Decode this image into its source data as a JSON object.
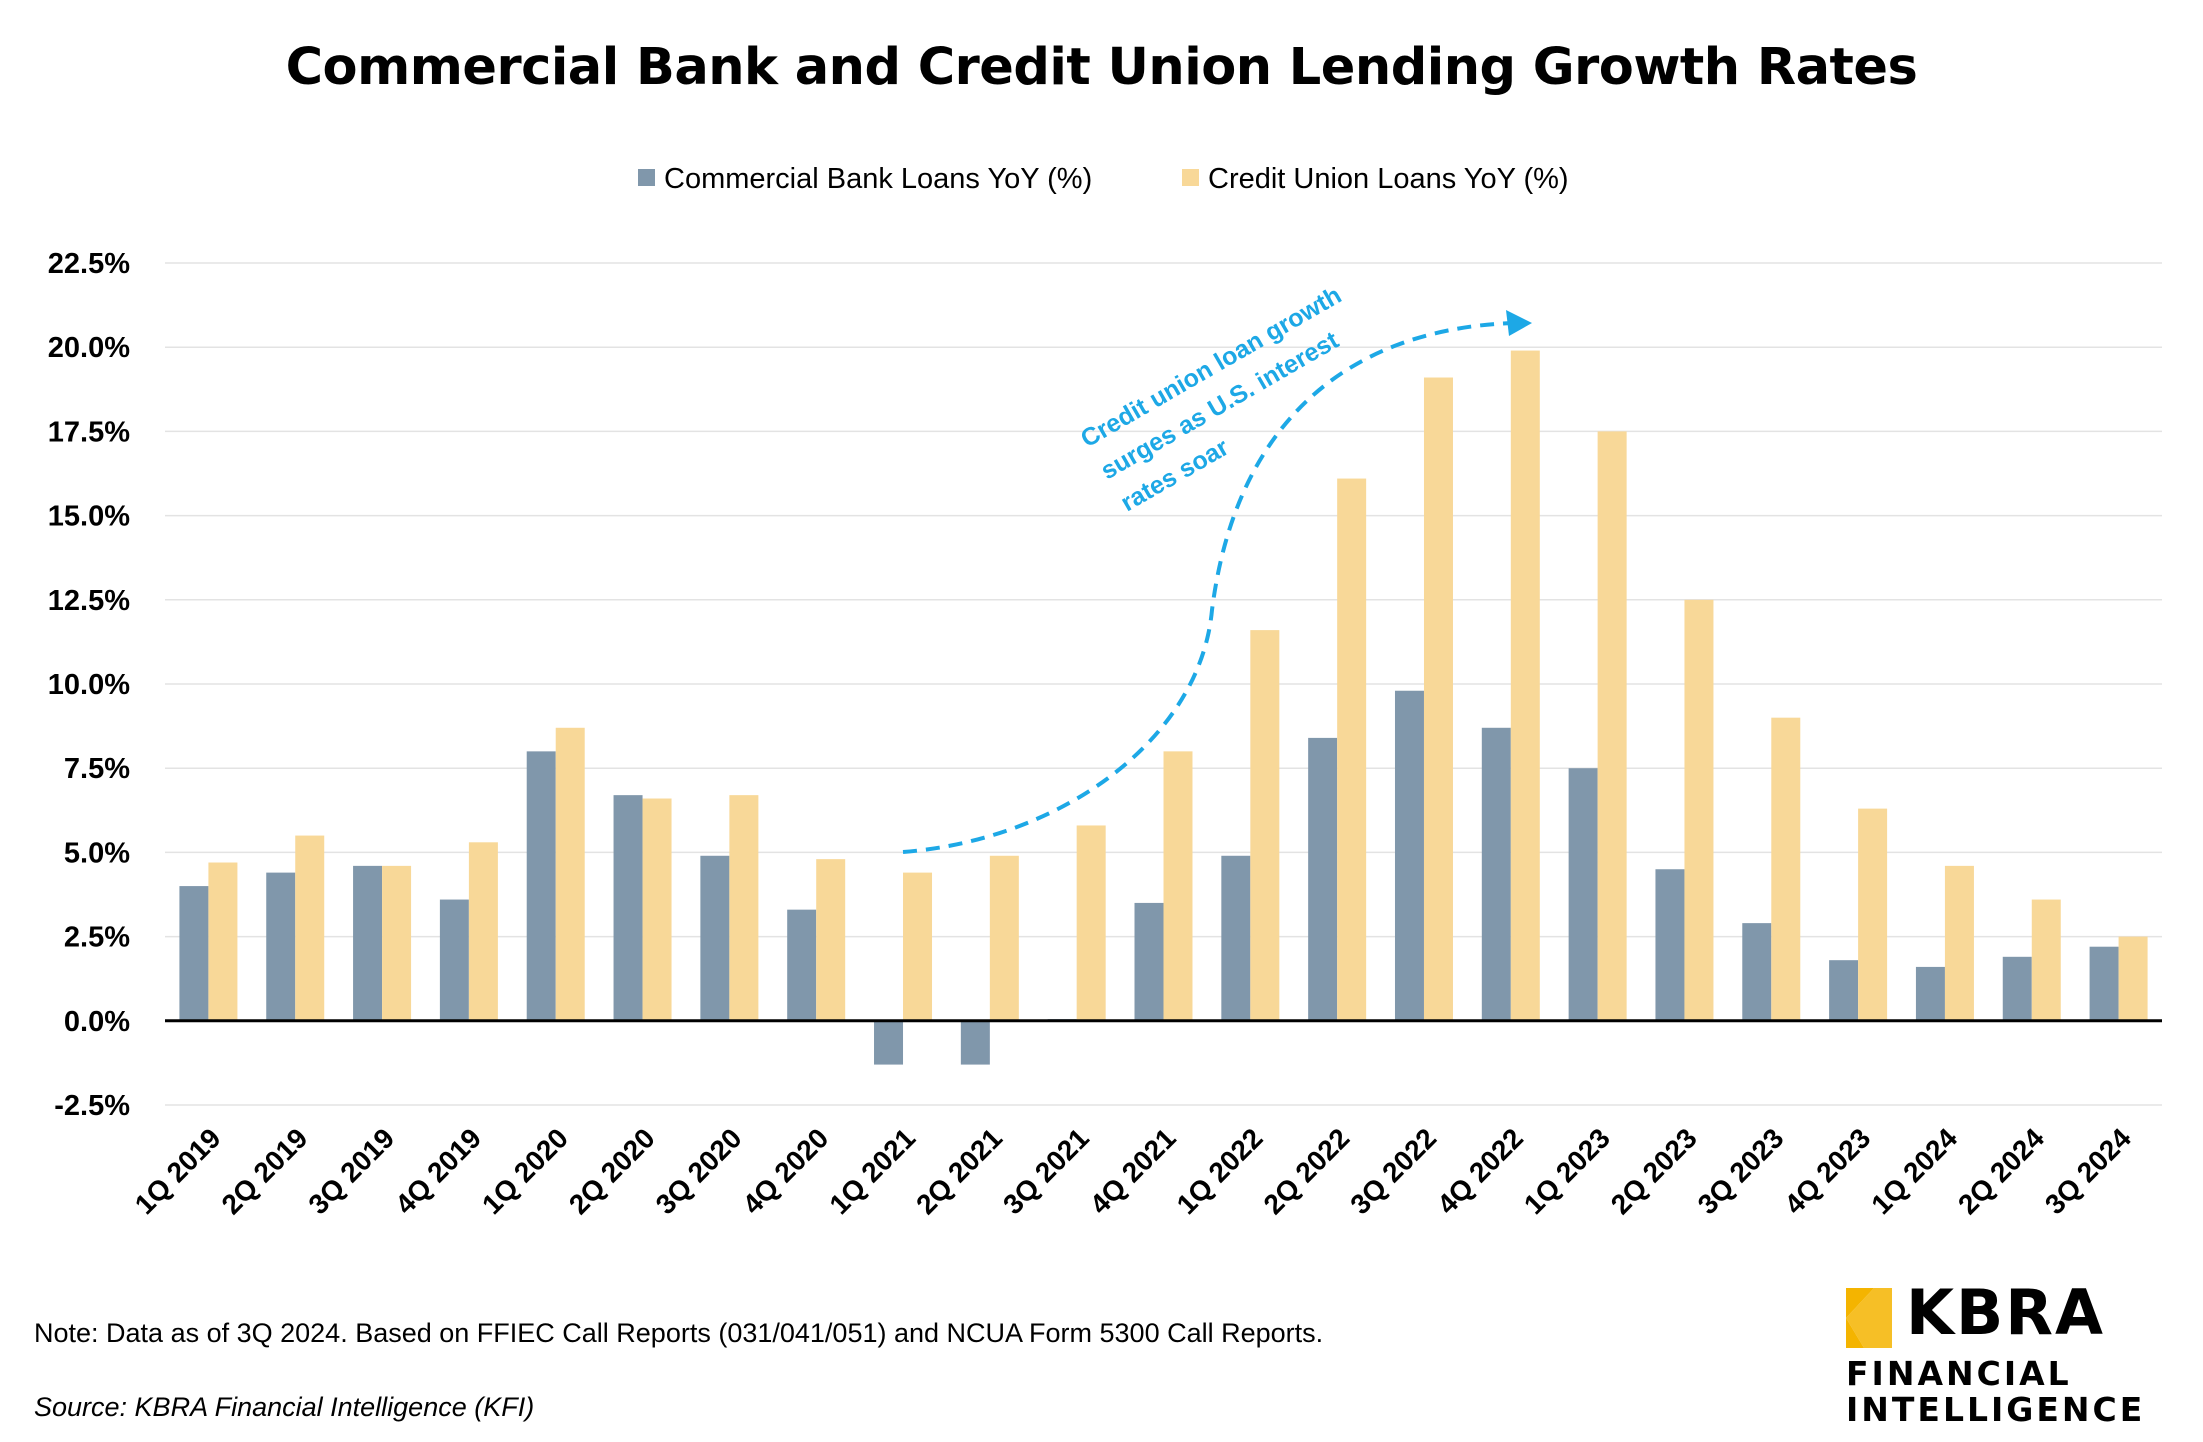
{
  "chart_data": {
    "type": "bar",
    "title": "Commercial Bank and Credit Union Lending Growth Rates",
    "xlabel": "",
    "ylabel": "",
    "ylim": [
      -2.5,
      22.5
    ],
    "y_ticks": [
      -2.5,
      0.0,
      2.5,
      5.0,
      7.5,
      10.0,
      12.5,
      15.0,
      17.5,
      20.0,
      22.5
    ],
    "y_tick_labels": [
      "-2.5%",
      "0.0%",
      "2.5%",
      "5.0%",
      "7.5%",
      "10.0%",
      "12.5%",
      "15.0%",
      "17.5%",
      "20.0%",
      "22.5%"
    ],
    "grid": true,
    "legend_position": "top-center",
    "categories": [
      "1Q 2019",
      "2Q 2019",
      "3Q 2019",
      "4Q 2019",
      "1Q 2020",
      "2Q 2020",
      "3Q 2020",
      "4Q 2020",
      "1Q 2021",
      "2Q 2021",
      "3Q 2021",
      "4Q 2021",
      "1Q 2022",
      "2Q 2022",
      "3Q 2022",
      "4Q 2022",
      "1Q 2023",
      "2Q 2023",
      "3Q 2023",
      "4Q 2023",
      "1Q 2024",
      "2Q 2024",
      "3Q 2024"
    ],
    "series": [
      {
        "name": "Commercial Bank Loans YoY (%)",
        "color": "#8097ab",
        "values": [
          4.0,
          4.4,
          4.6,
          3.6,
          8.0,
          6.7,
          4.9,
          3.3,
          -1.3,
          -1.3,
          0.05,
          3.5,
          4.9,
          8.4,
          9.8,
          8.7,
          7.5,
          4.5,
          2.9,
          1.8,
          1.6,
          1.9,
          2.2
        ]
      },
      {
        "name": "Credit Union Loans YoY (%)",
        "color": "#f8d898",
        "values": [
          4.7,
          5.5,
          4.6,
          5.3,
          8.7,
          6.6,
          6.7,
          4.8,
          4.4,
          4.9,
          5.8,
          8.0,
          11.6,
          16.1,
          19.1,
          19.9,
          17.5,
          12.5,
          9.0,
          6.3,
          4.6,
          3.6,
          2.5
        ]
      }
    ],
    "annotation": {
      "lines": [
        "Credit union loan growth",
        "surges as U.S. interest",
        "rates soar"
      ],
      "color": "#1da8e6"
    }
  },
  "note": "Note: Data as of 3Q 2024. Based on FFIEC Call Reports (031/041/051) and NCUA Form 5300 Call Reports.",
  "source": "Source: KBRA Financial Intelligence (KFI)",
  "logo": {
    "wordmark": "KBRA",
    "line1": "FINANCIAL",
    "line2": "INTELLIGENCE",
    "accent_color": "#f4b400"
  }
}
